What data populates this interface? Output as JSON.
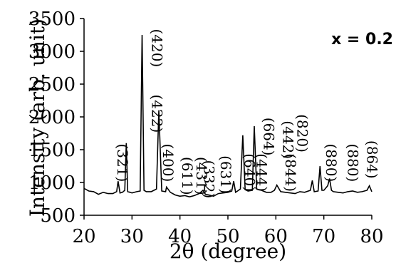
{
  "chart_data": {
    "type": "line",
    "xlabel": "2θ (degree)",
    "ylabel": "Intensity (arb. unit)",
    "xlim": [
      20,
      80
    ],
    "ylim": [
      500,
      3500
    ],
    "xticks": [
      "20",
      "30",
      "40",
      "50",
      "60",
      "70",
      "80"
    ],
    "yticks": [
      "500",
      "1000",
      "1500",
      "2000",
      "2500",
      "3000",
      "3500"
    ],
    "grid": false,
    "legend": "none",
    "annotation": "x = 0.2",
    "line_color": "#000000",
    "series": [
      {
        "x": [
          20,
          21,
          22,
          23,
          24,
          25,
          26,
          26.8,
          27.1,
          27.5,
          28,
          28.5,
          28.8,
          29.1,
          29.6,
          30,
          31,
          31.7,
          32.1,
          32.5,
          33,
          34,
          35.1,
          35.6,
          36.2,
          37,
          37.2,
          38,
          39,
          40,
          41,
          42,
          43,
          44,
          44.8,
          45.3,
          46,
          47,
          48,
          49,
          50,
          50.8,
          51.2,
          51.6,
          52,
          52.6,
          53.1,
          53.6,
          54.2,
          55.1,
          55.5,
          56,
          57,
          58,
          59,
          59.7,
          60.2,
          61,
          62,
          63,
          64,
          65,
          66,
          67.2,
          67.6,
          68,
          68.8,
          69.2,
          69.6,
          70,
          70.8,
          71.2,
          71.6,
          72,
          73,
          74,
          75,
          76,
          77,
          78,
          79,
          79.5,
          80
        ],
        "y": [
          910,
          870,
          860,
          820,
          850,
          830,
          830,
          860,
          1020,
          840,
          850,
          880,
          1600,
          860,
          850,
          840,
          860,
          870,
          3250,
          880,
          860,
          860,
          900,
          2100,
          870,
          860,
          930,
          850,
          810,
          790,
          800,
          780,
          800,
          830,
          880,
          820,
          810,
          790,
          830,
          840,
          850,
          870,
          1020,
          850,
          870,
          900,
          1720,
          890,
          870,
          880,
          1860,
          900,
          880,
          850,
          850,
          880,
          960,
          860,
          850,
          840,
          830,
          860,
          850,
          880,
          1030,
          860,
          870,
          1250,
          880,
          880,
          950,
          1060,
          880,
          860,
          850,
          840,
          860,
          870,
          850,
          860,
          880,
          950,
          860
        ]
      }
    ],
    "peak_labels": [
      {
        "text": "(420)",
        "x": 34.2,
        "y": 3050,
        "rotate": 90
      },
      {
        "text": "(422)",
        "x": 34.2,
        "y": 2050,
        "rotate": 90
      },
      {
        "text": "(321)",
        "x": 27.0,
        "y": 1300,
        "rotate": 90
      },
      {
        "text": "(400)",
        "x": 36.5,
        "y": 1300,
        "rotate": 90
      },
      {
        "text": "(611)",
        "x": 40.5,
        "y": 1100,
        "rotate": 90
      },
      {
        "text": "(431)",
        "x": 43.5,
        "y": 1100,
        "rotate": 90
      },
      {
        "text": "(332)",
        "x": 45.0,
        "y": 1050,
        "rotate": 90
      },
      {
        "text": "(631)",
        "x": 48.5,
        "y": 1120,
        "rotate": 90
      },
      {
        "text": "(640)",
        "x": 53.5,
        "y": 1150,
        "rotate": 90
      },
      {
        "text": "(444)",
        "x": 56.0,
        "y": 1150,
        "rotate": 90
      },
      {
        "text": "(664)",
        "x": 57.5,
        "y": 1700,
        "rotate": 90
      },
      {
        "text": "(442)",
        "x": 61.5,
        "y": 1650,
        "rotate": 90
      },
      {
        "text": "(820)",
        "x": 64.5,
        "y": 1750,
        "rotate": 90
      },
      {
        "text": "(844)",
        "x": 62.0,
        "y": 1150,
        "rotate": 90
      },
      {
        "text": "(880)",
        "x": 70.5,
        "y": 1300,
        "rotate": 90
      },
      {
        "text": "(880)",
        "x": 75.0,
        "y": 1300,
        "rotate": 90
      },
      {
        "text": "(864)",
        "x": 79.0,
        "y": 1350,
        "rotate": 90
      }
    ]
  }
}
